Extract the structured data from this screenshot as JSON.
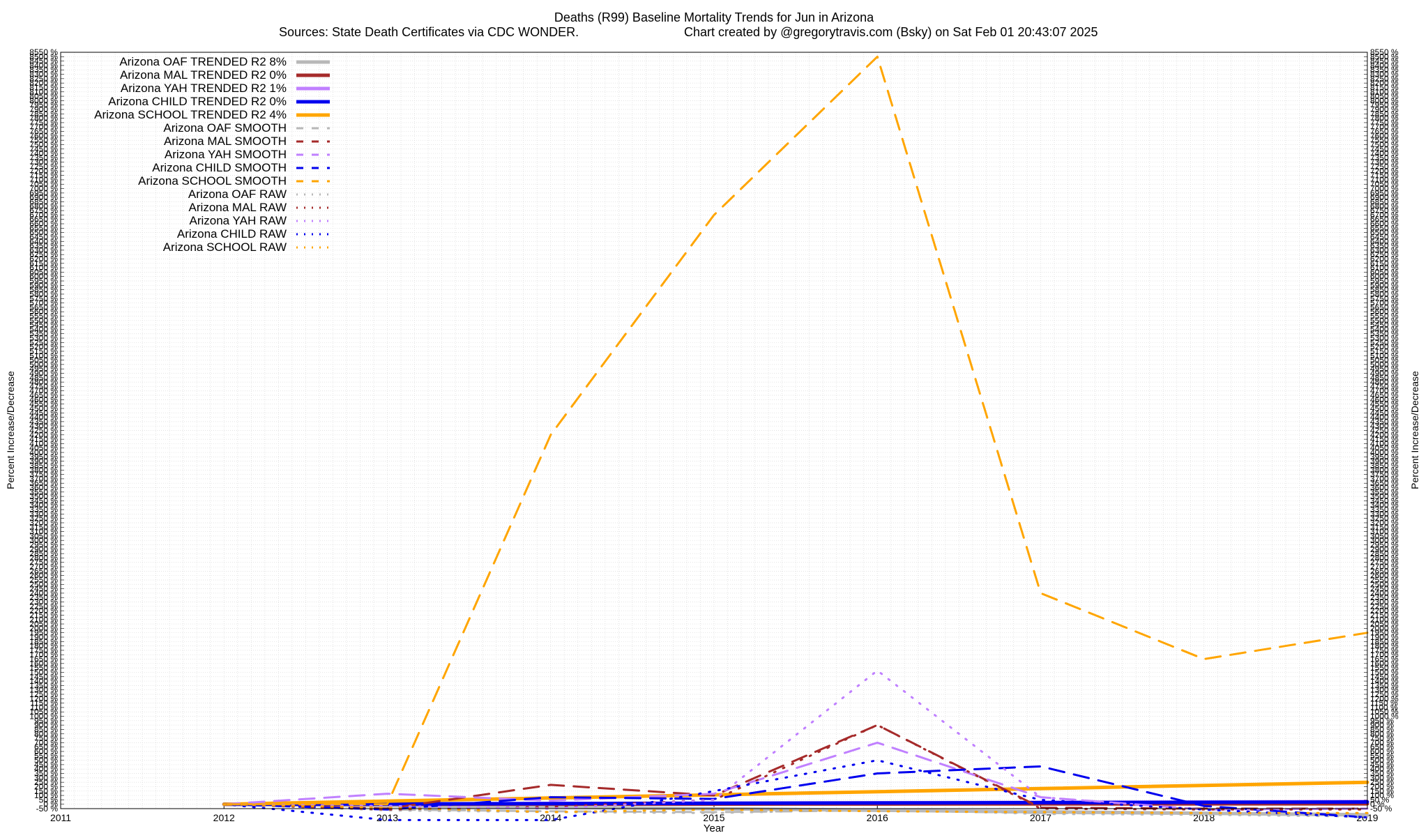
{
  "chart_data": {
    "type": "line",
    "title": "Deaths (R99)  Baseline Mortality Trends for Jun in Arizona",
    "subtitle_left": "Sources: State Death Certificates via CDC WONDER.",
    "subtitle_right": "Chart created by @gregorytravis.com (Bsky) on Sat Feb 01 20:43:07 2025",
    "xlabel": "Year",
    "ylabel": "Percent Increase/Decrease",
    "ylabel_right": "Percent Increase/Decrease",
    "x_ticks": [
      "2011",
      "2012",
      "2013",
      "2014",
      "2015",
      "2016",
      "2017",
      "2018",
      "2019"
    ],
    "xlim": [
      2011,
      2019
    ],
    "ylim": [
      -50,
      8550
    ],
    "y_ticks": [
      -50,
      0,
      50,
      100,
      150,
      200,
      250,
      300,
      350,
      400,
      450,
      500,
      550,
      600,
      650,
      700,
      750,
      800,
      850,
      900,
      950,
      1000,
      1050,
      1100,
      1150,
      1200,
      1250,
      1300,
      1350,
      1400,
      1450,
      1500,
      1550,
      1600,
      1650,
      1700,
      1750,
      1800,
      1850,
      1900,
      1950,
      2000,
      2050,
      2100,
      2150,
      2200,
      2250,
      2300,
      2350,
      2400,
      2450,
      2500,
      2550,
      2600,
      2650,
      2700,
      2750,
      2800,
      2850,
      2900,
      2950,
      3000,
      3050,
      3100,
      3150,
      3200,
      3250,
      3300,
      3350,
      3400,
      3450,
      3500,
      3550,
      3600,
      3650,
      3700,
      3750,
      3800,
      3850,
      3900,
      3950,
      4000,
      4050,
      4100,
      4150,
      4200,
      4250,
      4300,
      4350,
      4400,
      4450,
      4500,
      4550,
      4600,
      4650,
      4700,
      4750,
      4800,
      4850,
      4900,
      4950,
      5000,
      5050,
      5100,
      5150,
      5200,
      5250,
      5300,
      5350,
      5400,
      5450,
      5500,
      5550,
      5600,
      5650,
      5700,
      5750,
      5800,
      5850,
      5900,
      5950,
      6000,
      6050,
      6100,
      6150,
      6200,
      6250,
      6300,
      6350,
      6400,
      6450,
      6500,
      6550,
      6600,
      6650,
      6700,
      6750,
      6800,
      6850,
      6900,
      6950,
      7000,
      7050,
      7100,
      7150,
      7200,
      7250,
      7300,
      7350,
      7400,
      7450,
      7500,
      7550,
      7600,
      7650,
      7700,
      7750,
      7800,
      7850,
      7900,
      7950,
      8000,
      8050,
      8100,
      8150,
      8200,
      8250,
      8300,
      8350,
      8400,
      8450,
      8500,
      8550
    ],
    "y_tick_suffix": " %",
    "grid": true,
    "legend_position": "top-left",
    "series": [
      {
        "name": "Arizona OAF TRENDED R2  8%",
        "style": "solid",
        "width": 5,
        "color": "#b8b8b8",
        "x": [
          2012,
          2019
        ],
        "y": [
          0,
          -120
        ]
      },
      {
        "name": "Arizona MAL TRENDED R2  0%",
        "style": "solid",
        "width": 5,
        "color": "#a52a2a",
        "x": [
          2012,
          2019
        ],
        "y": [
          0,
          5
        ]
      },
      {
        "name": "Arizona YAH TRENDED R2  1%",
        "style": "solid",
        "width": 5,
        "color": "#c080ff",
        "x": [
          2012,
          2019
        ],
        "y": [
          0,
          30
        ]
      },
      {
        "name": "Arizona CHILD TRENDED R2  0%",
        "style": "solid",
        "width": 5,
        "color": "#0000ee",
        "x": [
          2012,
          2019
        ],
        "y": [
          0,
          25
        ]
      },
      {
        "name": "Arizona SCHOOL TRENDED R2  4%",
        "style": "solid",
        "width": 5,
        "color": "#ffa500",
        "x": [
          2012,
          2019
        ],
        "y": [
          0,
          250
        ]
      },
      {
        "name": "Arizona OAF SMOOTH",
        "style": "dash",
        "width": 3,
        "color": "#b8b8b8",
        "x": [
          2012,
          2013,
          2014,
          2015,
          2016,
          2017,
          2018,
          2019
        ],
        "y": [
          0,
          -60,
          -80,
          -90,
          -70,
          -100,
          -110,
          -130
        ]
      },
      {
        "name": "Arizona MAL SMOOTH",
        "style": "dash",
        "width": 3,
        "color": "#a52a2a",
        "x": [
          2012,
          2013,
          2014,
          2015,
          2016,
          2017,
          2018,
          2019
        ],
        "y": [
          0,
          -50,
          220,
          100,
          900,
          -40,
          -50,
          -50
        ]
      },
      {
        "name": "Arizona YAH SMOOTH",
        "style": "dash",
        "width": 3,
        "color": "#c080ff",
        "x": [
          2012,
          2013,
          2014,
          2015,
          2016,
          2017,
          2018,
          2019
        ],
        "y": [
          0,
          120,
          40,
          120,
          700,
          80,
          -60,
          -50
        ]
      },
      {
        "name": "Arizona CHILD SMOOTH",
        "style": "dash",
        "width": 3,
        "color": "#0000ee",
        "x": [
          2012,
          2013,
          2014,
          2015,
          2016,
          2017,
          2018,
          2019
        ],
        "y": [
          0,
          -60,
          80,
          60,
          350,
          430,
          -20,
          -150
        ]
      },
      {
        "name": "Arizona SCHOOL SMOOTH",
        "style": "dash",
        "width": 3,
        "color": "#ffa500",
        "x": [
          2012,
          2013,
          2014,
          2015,
          2016,
          2017,
          2018,
          2019
        ],
        "y": [
          0,
          0,
          4200,
          6700,
          8500,
          2400,
          1650,
          1950
        ]
      },
      {
        "name": "Arizona OAF RAW",
        "style": "dot",
        "width": 3,
        "color": "#b8b8b8",
        "x": [
          2012,
          2013,
          2014,
          2015,
          2016,
          2017,
          2018,
          2019
        ],
        "y": [
          0,
          -70,
          -90,
          -100,
          -60,
          -110,
          -120,
          -140
        ]
      },
      {
        "name": "Arizona MAL RAW",
        "style": "dot",
        "width": 3,
        "color": "#a52a2a",
        "x": [
          2012,
          2013,
          2014,
          2015,
          2016,
          2017,
          2018,
          2019
        ],
        "y": [
          0,
          -60,
          -30,
          50,
          900,
          -50,
          -60,
          -60
        ]
      },
      {
        "name": "Arizona YAH RAW",
        "style": "dot",
        "width": 3,
        "color": "#c080ff",
        "x": [
          2012,
          2013,
          2014,
          2015,
          2016,
          2017,
          2018,
          2019
        ],
        "y": [
          0,
          -20,
          -50,
          50,
          1520,
          80,
          -60,
          -50
        ]
      },
      {
        "name": "Arizona CHILD RAW",
        "style": "dot",
        "width": 3,
        "color": "#0000ee",
        "x": [
          2012,
          2013,
          2014,
          2015,
          2016,
          2017,
          2018,
          2019
        ],
        "y": [
          0,
          -180,
          -180,
          150,
          500,
          50,
          -60,
          -150
        ]
      },
      {
        "name": "Arizona SCHOOL RAW",
        "style": "dot",
        "width": 3,
        "color": "#ffa500",
        "x": [
          2012,
          2013,
          2014,
          2015,
          2016,
          2017,
          2018,
          2019
        ],
        "y": [
          0,
          -40,
          -90,
          -60,
          -80,
          -90,
          -100,
          -100
        ]
      }
    ]
  }
}
